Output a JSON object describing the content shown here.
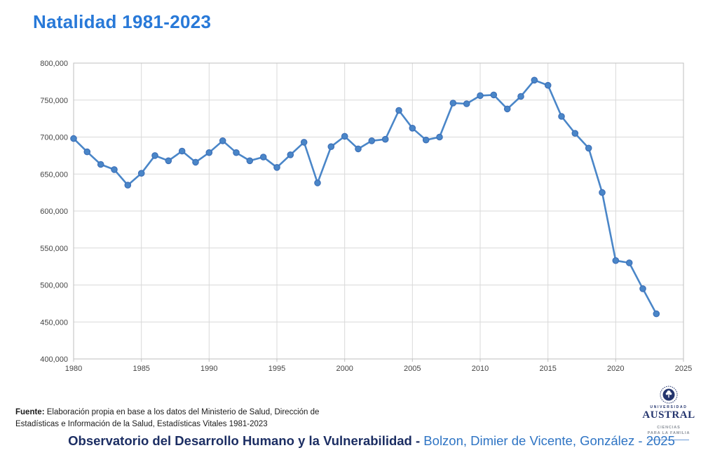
{
  "title": "Natalidad 1981-2023",
  "colors": {
    "title_color": "#2879d8",
    "navy": "#1c2e63",
    "author_blue": "#2e74c4"
  },
  "chart_data": {
    "type": "line",
    "title": "Natalidad 1981-2023",
    "xlabel": "",
    "ylabel": "",
    "x": [
      1980,
      1981,
      1982,
      1983,
      1984,
      1985,
      1986,
      1987,
      1988,
      1989,
      1990,
      1991,
      1992,
      1993,
      1994,
      1995,
      1996,
      1997,
      1998,
      1999,
      2000,
      2001,
      2002,
      2003,
      2004,
      2005,
      2006,
      2007,
      2008,
      2009,
      2010,
      2011,
      2012,
      2013,
      2014,
      2015,
      2016,
      2017,
      2018,
      2019,
      2020,
      2021,
      2022,
      2023
    ],
    "values": [
      698000,
      680000,
      663000,
      656000,
      635000,
      651000,
      675000,
      668000,
      681000,
      666000,
      679000,
      695000,
      679000,
      668000,
      673000,
      659000,
      676000,
      693000,
      638000,
      687000,
      701000,
      684000,
      695000,
      697000,
      736000,
      712000,
      696000,
      700000,
      746000,
      745000,
      756000,
      757000,
      738000,
      755000,
      777000,
      770000,
      728000,
      705000,
      685000,
      625000,
      533000,
      530000,
      495000,
      461000
    ],
    "xlim": [
      1980,
      2025
    ],
    "ylim": [
      400000,
      800000
    ],
    "x_tick_step": 5,
    "y_tick_step": 50000,
    "x_tick_labels": [
      "1980",
      "1985",
      "1990",
      "1995",
      "2000",
      "2005",
      "2010",
      "2015",
      "2020",
      "2025"
    ],
    "y_tick_labels": [
      "400,000",
      "450,000",
      "500,000",
      "550,000",
      "600,000",
      "650,000",
      "700,000",
      "750,000",
      "800,000"
    ],
    "grid": true,
    "legend": "none",
    "line_color": "#4a86c8",
    "marker": "circle",
    "marker_stroke": "#3d70b8",
    "grid_color": "#d9d9d9",
    "axis_color": "#bfbfbf",
    "tick_label_color": "#454545"
  },
  "source": {
    "label": "Fuente:",
    "line1": " Elaboración propia en base a los datos del Ministerio de Salud, Dirección de",
    "line2": "Estadísticas e Información de la Salud, Estadísticas Vitales 1981-2023"
  },
  "logo": {
    "university": "UNIVERSIDAD",
    "name": "AUSTRAL",
    "tagline1": "CIENCIAS",
    "tagline2": "PARA LA FAMILIA"
  },
  "footer_title": {
    "bold": "Observatorio del Desarrollo Humano y la Vulnerabilidad -",
    "authors": " Bolzon, Dimier de Vicente, González - 2025"
  }
}
